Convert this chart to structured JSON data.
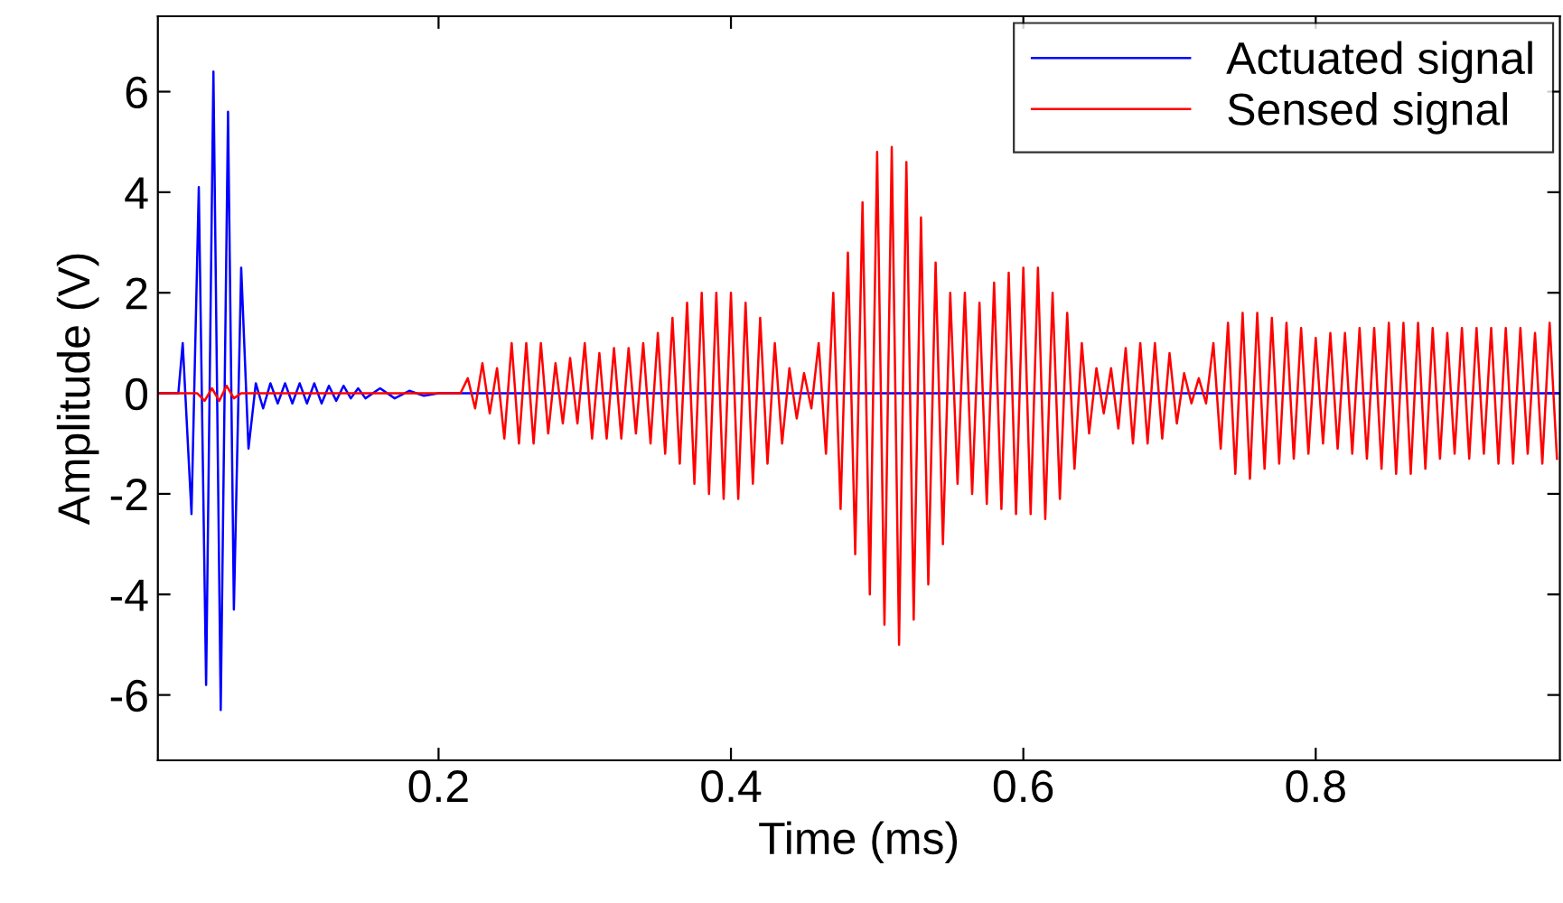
{
  "chart_data": {
    "type": "line",
    "xlabel": "Time (ms)",
    "ylabel": "Amplitude (V)",
    "xlim": [
      0.008,
      0.967
    ],
    "ylim": [
      -7.3,
      7.5
    ],
    "xticks": [
      0.2,
      0.4,
      0.6,
      0.8
    ],
    "yticks": [
      -6,
      -4,
      -2,
      0,
      2,
      4,
      6
    ],
    "grid": false,
    "legend": "top right",
    "marker": "none",
    "line_style": "solid",
    "series": [
      {
        "name": "Actuated signal",
        "color": "#0000ff",
        "x": [
          0.008,
          0.022,
          0.025,
          0.031,
          0.036,
          0.041,
          0.046,
          0.051,
          0.056,
          0.06,
          0.065,
          0.07,
          0.075,
          0.08,
          0.085,
          0.09,
          0.095,
          0.1,
          0.105,
          0.11,
          0.115,
          0.12,
          0.125,
          0.13,
          0.135,
          0.14,
          0.145,
          0.15,
          0.16,
          0.17,
          0.18,
          0.19,
          0.2,
          0.967
        ],
        "values": [
          0,
          0,
          1.0,
          -2.4,
          4.1,
          -5.8,
          6.4,
          -6.3,
          5.6,
          -4.3,
          2.5,
          -1.1,
          0.2,
          -0.3,
          0.2,
          -0.2,
          0.2,
          -0.2,
          0.2,
          -0.2,
          0.2,
          -0.2,
          0.15,
          -0.15,
          0.15,
          -0.1,
          0.1,
          -0.1,
          0.1,
          -0.1,
          0.05,
          -0.05,
          0,
          0
        ]
      },
      {
        "name": "Sensed signal",
        "color": "#ff0000",
        "x": [
          0.008,
          0.035,
          0.04,
          0.045,
          0.05,
          0.055,
          0.06,
          0.065,
          0.215,
          0.22,
          0.225,
          0.23,
          0.235,
          0.24,
          0.245,
          0.25,
          0.255,
          0.26,
          0.265,
          0.27,
          0.275,
          0.28,
          0.285,
          0.29,
          0.295,
          0.3,
          0.305,
          0.31,
          0.315,
          0.32,
          0.325,
          0.33,
          0.335,
          0.34,
          0.345,
          0.35,
          0.355,
          0.36,
          0.365,
          0.37,
          0.375,
          0.38,
          0.385,
          0.39,
          0.395,
          0.4,
          0.405,
          0.41,
          0.415,
          0.42,
          0.425,
          0.43,
          0.435,
          0.44,
          0.445,
          0.45,
          0.455,
          0.46,
          0.465,
          0.47,
          0.475,
          0.48,
          0.485,
          0.49,
          0.495,
          0.5,
          0.505,
          0.51,
          0.515,
          0.52,
          0.525,
          0.53,
          0.535,
          0.54,
          0.545,
          0.55,
          0.555,
          0.56,
          0.565,
          0.57,
          0.575,
          0.58,
          0.585,
          0.59,
          0.595,
          0.6,
          0.605,
          0.61,
          0.615,
          0.62,
          0.625,
          0.63,
          0.635,
          0.64,
          0.645,
          0.65,
          0.655,
          0.66,
          0.665,
          0.67,
          0.675,
          0.68,
          0.685,
          0.69,
          0.695,
          0.7,
          0.705,
          0.71,
          0.715,
          0.72,
          0.725,
          0.73,
          0.735,
          0.74,
          0.745,
          0.75,
          0.755,
          0.76,
          0.765,
          0.77,
          0.775,
          0.78,
          0.785,
          0.79,
          0.795,
          0.8,
          0.805,
          0.81,
          0.815,
          0.82,
          0.825,
          0.83,
          0.835,
          0.84,
          0.845,
          0.85,
          0.855,
          0.86,
          0.865,
          0.87,
          0.875,
          0.88,
          0.885,
          0.89,
          0.895,
          0.9,
          0.905,
          0.91,
          0.915,
          0.92,
          0.925,
          0.93,
          0.935,
          0.94,
          0.945,
          0.95,
          0.955,
          0.96,
          0.965
        ],
        "values": [
          0,
          0,
          -0.15,
          0.1,
          -0.15,
          0.15,
          -0.1,
          0,
          0,
          0.3,
          -0.3,
          0.6,
          -0.4,
          0.5,
          -0.9,
          1.0,
          -1.0,
          1.0,
          -1.0,
          1.0,
          -0.8,
          0.6,
          -0.6,
          0.7,
          -0.6,
          1.0,
          -0.9,
          0.8,
          -0.9,
          0.9,
          -0.9,
          0.9,
          -0.8,
          1.0,
          -1.0,
          1.2,
          -1.2,
          1.5,
          -1.4,
          1.8,
          -1.8,
          2.0,
          -2.0,
          2.0,
          -2.1,
          2.0,
          -2.1,
          1.8,
          -1.8,
          1.5,
          -1.4,
          1.0,
          -1.0,
          0.5,
          -0.5,
          0.4,
          -0.3,
          1.0,
          -1.2,
          2.0,
          -2.3,
          2.8,
          -3.2,
          3.8,
          -4.0,
          4.8,
          -4.6,
          4.9,
          -5.0,
          4.6,
          -4.5,
          3.5,
          -3.8,
          2.6,
          -3.0,
          2.0,
          -1.8,
          2.0,
          -2.0,
          1.8,
          -2.2,
          2.2,
          -2.3,
          2.4,
          -2.4,
          2.5,
          -2.4,
          2.5,
          -2.5,
          2.0,
          -2.1,
          1.6,
          -1.5,
          1.0,
          -0.8,
          0.5,
          -0.4,
          0.5,
          -0.7,
          0.9,
          -1.0,
          1.0,
          -1.0,
          1.0,
          -0.9,
          0.8,
          -0.6,
          0.4,
          -0.2,
          0.3,
          -0.2,
          1.0,
          -1.1,
          1.4,
          -1.6,
          1.6,
          -1.7,
          1.6,
          -1.5,
          1.5,
          -1.4,
          1.4,
          -1.3,
          1.3,
          -1.2,
          1.1,
          -1.0,
          1.2,
          -1.1,
          1.2,
          -1.2,
          1.3,
          -1.3,
          1.3,
          -1.5,
          1.4,
          -1.6,
          1.4,
          -1.6,
          1.4,
          -1.5,
          1.3,
          -1.3,
          1.2,
          -1.2,
          1.3,
          -1.3,
          1.3,
          -1.2,
          1.3,
          -1.4,
          1.3,
          -1.4,
          1.3,
          -1.2,
          1.2,
          -1.4,
          1.4,
          -1.3
        ]
      }
    ]
  }
}
